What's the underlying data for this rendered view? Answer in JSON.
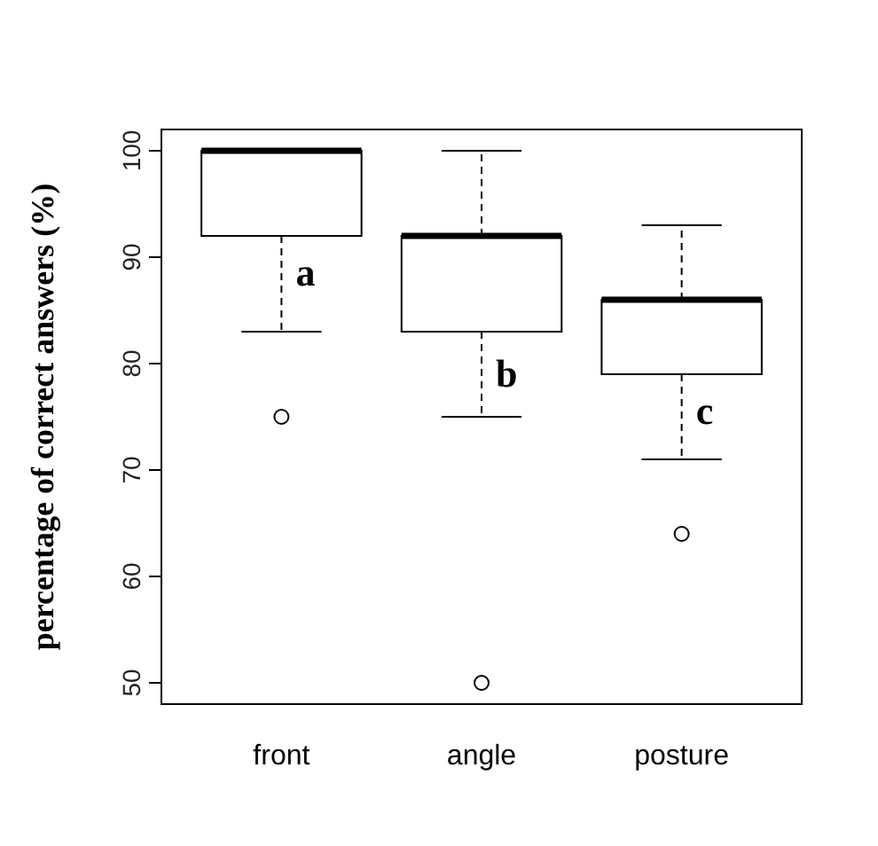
{
  "chart_data": {
    "type": "box",
    "ylabel": "percentage of correct answers (%)",
    "categories": [
      "front",
      "angle",
      "posture"
    ],
    "boxes": [
      {
        "low": 83,
        "q1": 92,
        "median": 100,
        "q3": 100,
        "high": 100,
        "outliers": [
          75
        ]
      },
      {
        "low": 75,
        "q1": 83,
        "median": 92,
        "q3": 92,
        "high": 100,
        "outliers": [
          50
        ]
      },
      {
        "low": 71,
        "q1": 79,
        "median": 86,
        "q3": 86,
        "high": 93,
        "outliers": [
          64
        ]
      }
    ],
    "ylim": [
      48,
      102
    ],
    "yticks": [
      50,
      60,
      70,
      80,
      90,
      100
    ],
    "annotations": [
      {
        "text": "a",
        "x": "front",
        "y": 88.5
      },
      {
        "text": "b",
        "x": "angle",
        "y": 79
      },
      {
        "text": "c",
        "x": "posture",
        "y": 75.5
      }
    ]
  }
}
